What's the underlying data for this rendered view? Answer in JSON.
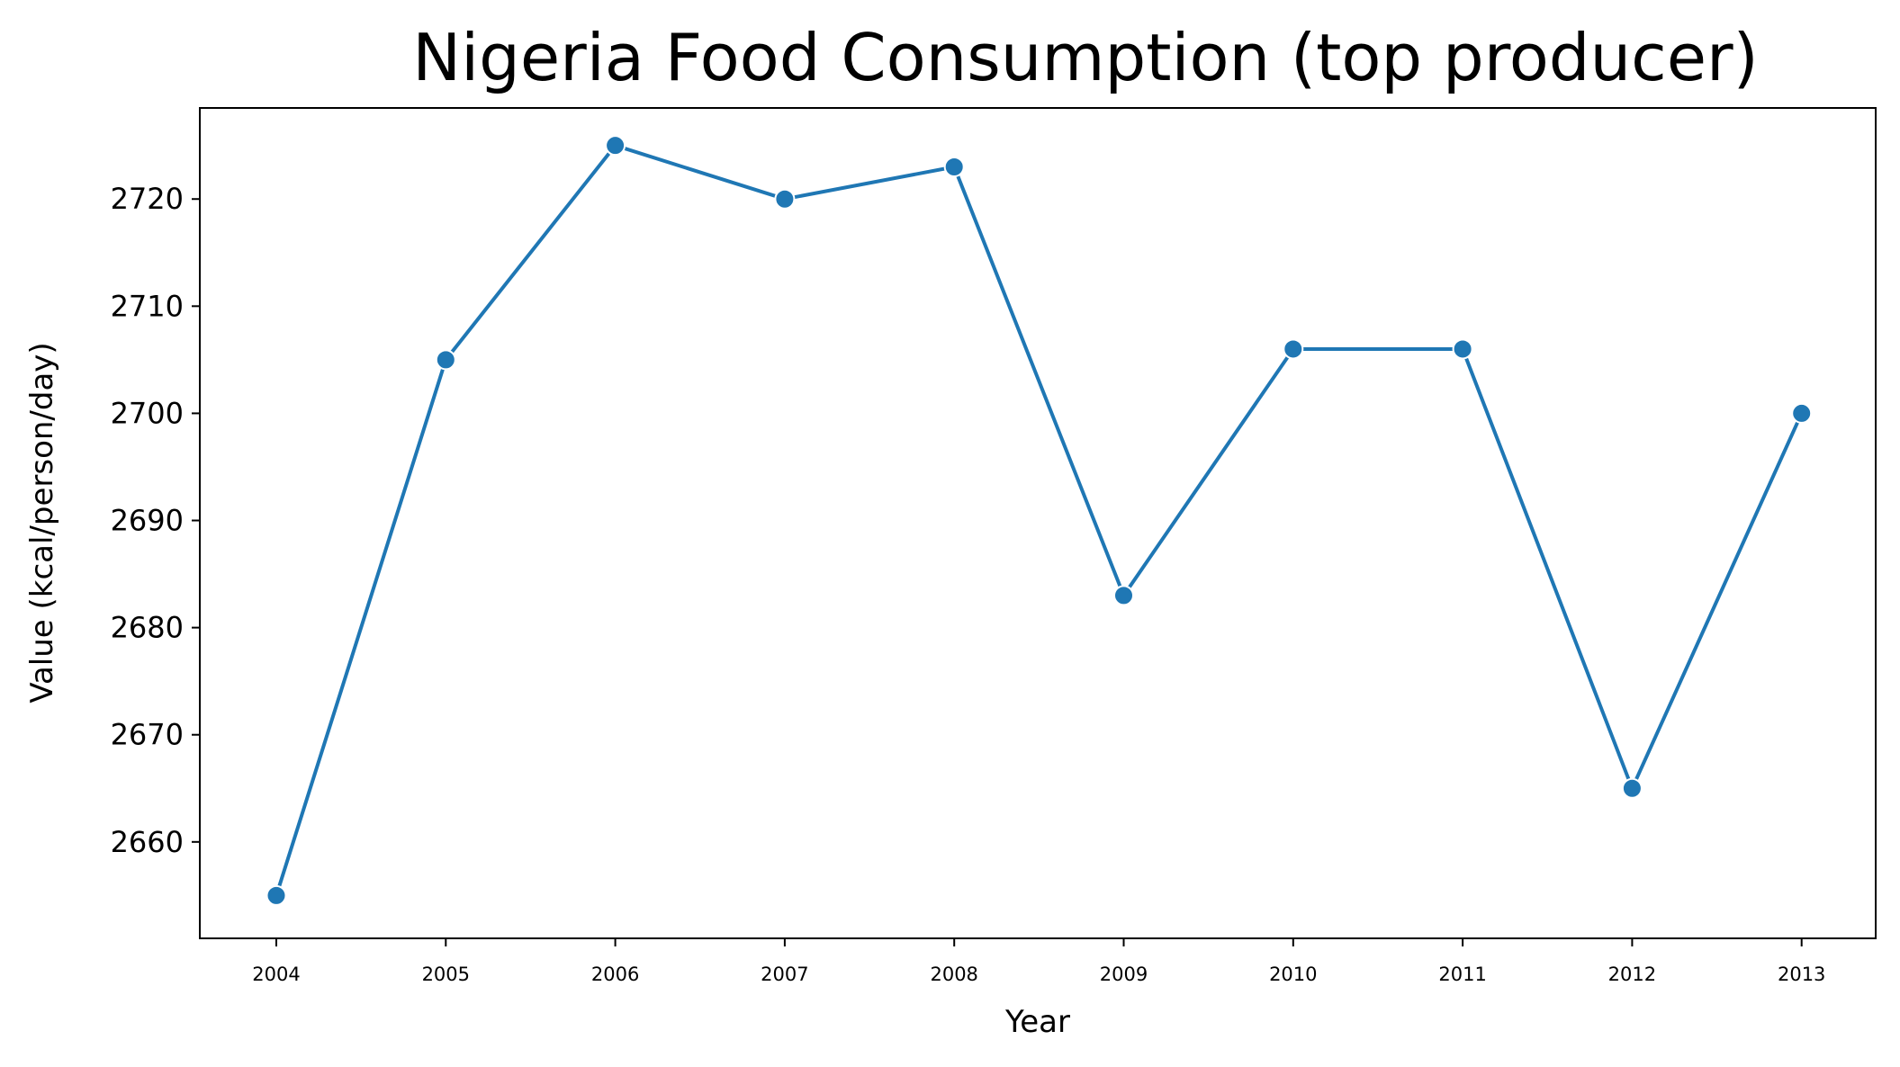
{
  "chart_data": {
    "type": "line",
    "title": "Nigeria Food Consumption (top producer)",
    "xlabel": "Year",
    "ylabel": "Value (kcal/person/day)",
    "categories": [
      "2004",
      "2005",
      "2006",
      "2007",
      "2008",
      "2009",
      "2010",
      "2011",
      "2012",
      "2013"
    ],
    "series": [
      {
        "values": [
          2655,
          2705,
          2725,
          2720,
          2723,
          2683,
          2706,
          2706,
          2665,
          2700
        ]
      }
    ],
    "yticks": [
      "2660",
      "2670",
      "2680",
      "2690",
      "2700",
      "2710",
      "2720"
    ],
    "ylim": [
      2651,
      2728.5
    ],
    "grid": false,
    "legend": "none",
    "line_color": "#1f77b4",
    "marker": "circle",
    "marker_edge_color": "#ffffff"
  }
}
